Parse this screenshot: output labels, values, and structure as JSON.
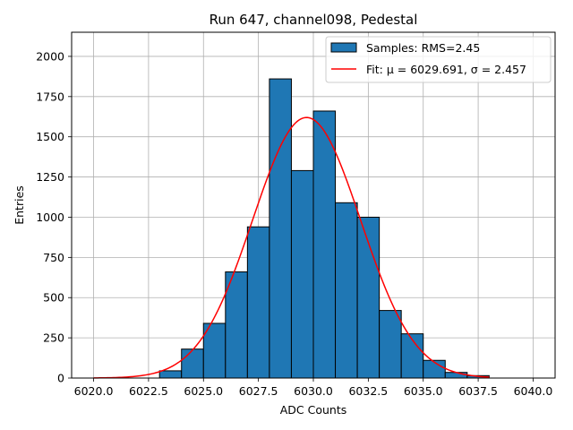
{
  "chart_data": {
    "type": "bar",
    "title": "Run 647, channel098, Pedestal",
    "xlabel": "ADC Counts",
    "ylabel": "Entries",
    "xlim": [
      6019.0,
      6041.0
    ],
    "ylim": [
      0,
      2150
    ],
    "xticks": [
      6020.0,
      6022.5,
      6025.0,
      6027.5,
      6030.0,
      6032.5,
      6035.0,
      6037.5,
      6040.0
    ],
    "xtick_labels": [
      "6020.0",
      "6022.5",
      "6025.0",
      "6027.5",
      "6030.0",
      "6032.5",
      "6035.0",
      "6037.5",
      "6040.0"
    ],
    "yticks": [
      0,
      250,
      500,
      750,
      1000,
      1250,
      1500,
      1750,
      2000
    ],
    "ytick_labels": [
      "0",
      "250",
      "500",
      "750",
      "1000",
      "1250",
      "1500",
      "1750",
      "2000"
    ],
    "grid": true,
    "legend_position": "top-right",
    "series": [
      {
        "name": "Samples: RMS=2.45",
        "kind": "histogram",
        "color": "#1f77b4",
        "edge_color": "#000000",
        "bin_edges": [
          6023.0,
          6024.0,
          6025.0,
          6026.0,
          6027.0,
          6028.0,
          6029.0,
          6030.0,
          6031.0,
          6032.0,
          6033.0,
          6034.0,
          6035.0,
          6036.0,
          6037.0,
          6038.0
        ],
        "values": [
          45,
          180,
          340,
          660,
          940,
          1860,
          1290,
          1660,
          1090,
          1000,
          420,
          275,
          110,
          35,
          15
        ]
      },
      {
        "name": "Fit: μ = 6029.691, σ = 2.457",
        "kind": "gaussian",
        "color": "#ff0000",
        "mu": 6029.691,
        "sigma": 2.457,
        "amplitude": 1620,
        "x_range": [
          6020.0,
          6038.0
        ]
      }
    ]
  }
}
